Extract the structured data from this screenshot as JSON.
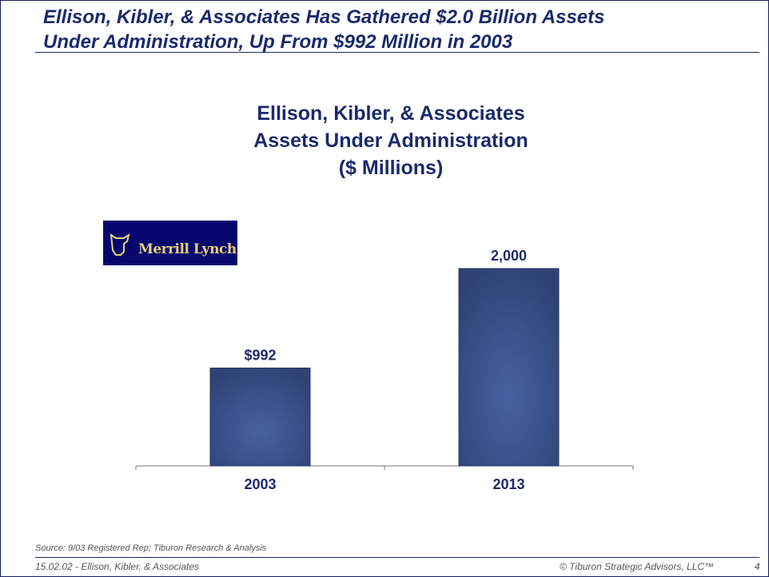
{
  "slide": {
    "title_line1": "Ellison, Kibler, & Associates Has Gathered $2.0 Billion Assets",
    "title_line2": "Under Administration, Up From $992 Million in 2003",
    "logo_text": "Merrill Lynch",
    "source": "Source:  9/03 Registered Rep; Tiburon Research & Analysis",
    "footer_left": "15.02.02 - Ellison, Kibler, & Associates",
    "footer_right": "© Tiburon Strategic Advisors, LLC™",
    "page_number": "4"
  },
  "chart_data": {
    "type": "bar",
    "title_lines": [
      "Ellison, Kibler, & Associates",
      "Assets Under Administration",
      "($ Millions)"
    ],
    "categories": [
      "2003",
      "2013"
    ],
    "values": [
      992,
      2000
    ],
    "data_labels": [
      "$992",
      "2,000"
    ],
    "ylim": [
      0,
      2000
    ],
    "xlabel": "",
    "ylabel": "",
    "grid": false,
    "colors": {
      "bar": "#34497f",
      "bar_center": "#4761a0",
      "text": "#1a2a6c"
    }
  }
}
